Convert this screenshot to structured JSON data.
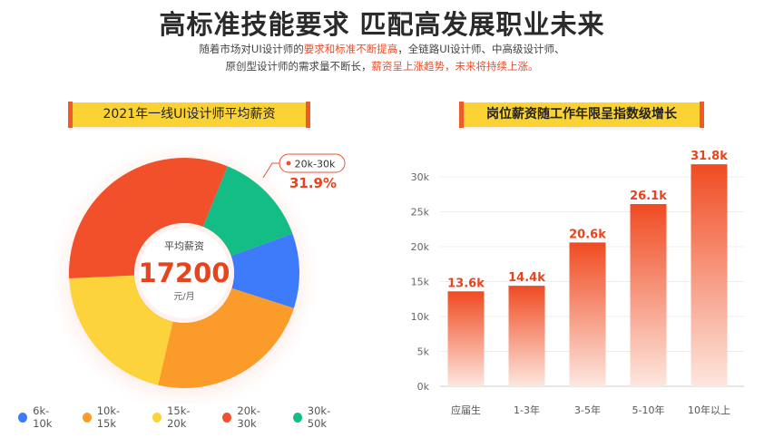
{
  "header": {
    "title": "高标准技能要求 匹配高发展职业未来",
    "sub1_a": "随着市场对UI设计师的",
    "sub1_b": "要求和标准不断提高",
    "sub1_c": "，全链路UI设计师、中高级设计师、",
    "sub2_a": "原创型设计师的需求量不断长，",
    "sub2_b": "薪资呈上涨趋势，未来将持续上涨。"
  },
  "chart_data": [
    {
      "type": "pie",
      "title": "2021年一线UI设计师平均薪资",
      "center_label": "平均薪资",
      "center_value": "17200",
      "center_unit": "元/月",
      "callout_label": "20k-30k",
      "callout_value": "31.9%",
      "slices": [
        {
          "name": "6k-10k",
          "value": 10.5,
          "color": "#3d7bfb"
        },
        {
          "name": "10k-15k",
          "value": 23.7,
          "color": "#fb9c2a"
        },
        {
          "name": "15k-20k",
          "value": 20.6,
          "color": "#fcd33a"
        },
        {
          "name": "20k-30k",
          "value": 31.9,
          "color": "#f2502b"
        },
        {
          "name": "30k-50k",
          "value": 13.3,
          "color": "#15bd86"
        }
      ],
      "legend_position": "bottom"
    },
    {
      "type": "bar",
      "title": "岗位薪资随工作年限呈指数级增长",
      "categories": [
        "应届生",
        "1-3年",
        "3-5年",
        "5-10年",
        "10年以上"
      ],
      "values": [
        13.6,
        14.4,
        20.6,
        26.1,
        31.8
      ],
      "value_labels": [
        "13.6k",
        "14.4k",
        "20.6k",
        "26.1k",
        "31.8k"
      ],
      "yticks": [
        "0k",
        "5k",
        "10k",
        "15k",
        "20k",
        "25k",
        "30k"
      ],
      "ylim": [
        0,
        30
      ],
      "grid": true,
      "bar_color_top": "#f04b22",
      "bar_color_bottom": "#fde7df"
    }
  ]
}
